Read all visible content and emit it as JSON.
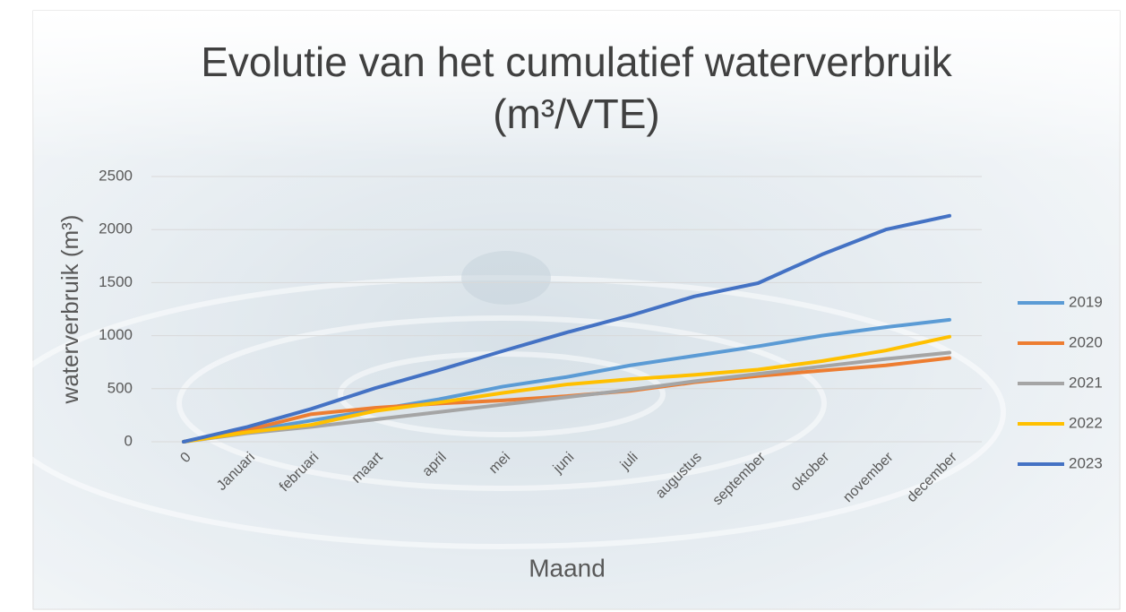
{
  "chart_data": {
    "type": "line",
    "title": "Evolutie van het cumulatief waterverbruik (m³/VTE)",
    "x_label": "Maand",
    "y_label": "waterverbruik (m³)",
    "categories": [
      "0",
      "Januari",
      "februari",
      "maart",
      "april",
      "mei",
      "juni",
      "juli",
      "augustus",
      "september",
      "oktober",
      "november",
      "december"
    ],
    "series": [
      {
        "name": "2019",
        "color": "#5b9bd5",
        "values": [
          0,
          100,
          200,
          300,
          400,
          520,
          610,
          720,
          810,
          900,
          1000,
          1080,
          1150
        ]
      },
      {
        "name": "2020",
        "color": "#ed7d31",
        "values": [
          0,
          110,
          260,
          320,
          360,
          390,
          430,
          480,
          560,
          620,
          670,
          720,
          790
        ]
      },
      {
        "name": "2021",
        "color": "#a5a5a5",
        "values": [
          0,
          80,
          140,
          210,
          280,
          350,
          420,
          490,
          570,
          640,
          710,
          780,
          840
        ]
      },
      {
        "name": "2022",
        "color": "#ffc000",
        "values": [
          0,
          90,
          160,
          290,
          370,
          460,
          540,
          590,
          630,
          680,
          760,
          860,
          990
        ]
      },
      {
        "name": "2023",
        "color": "#4472c4",
        "values": [
          0,
          140,
          310,
          505,
          675,
          855,
          1030,
          1190,
          1370,
          1495,
          1765,
          2000,
          2130
        ]
      }
    ],
    "ylim": [
      0,
      2500
    ],
    "yticks": [
      0,
      500,
      1000,
      1500,
      2000,
      2500
    ],
    "grid": true,
    "legend": "right"
  }
}
